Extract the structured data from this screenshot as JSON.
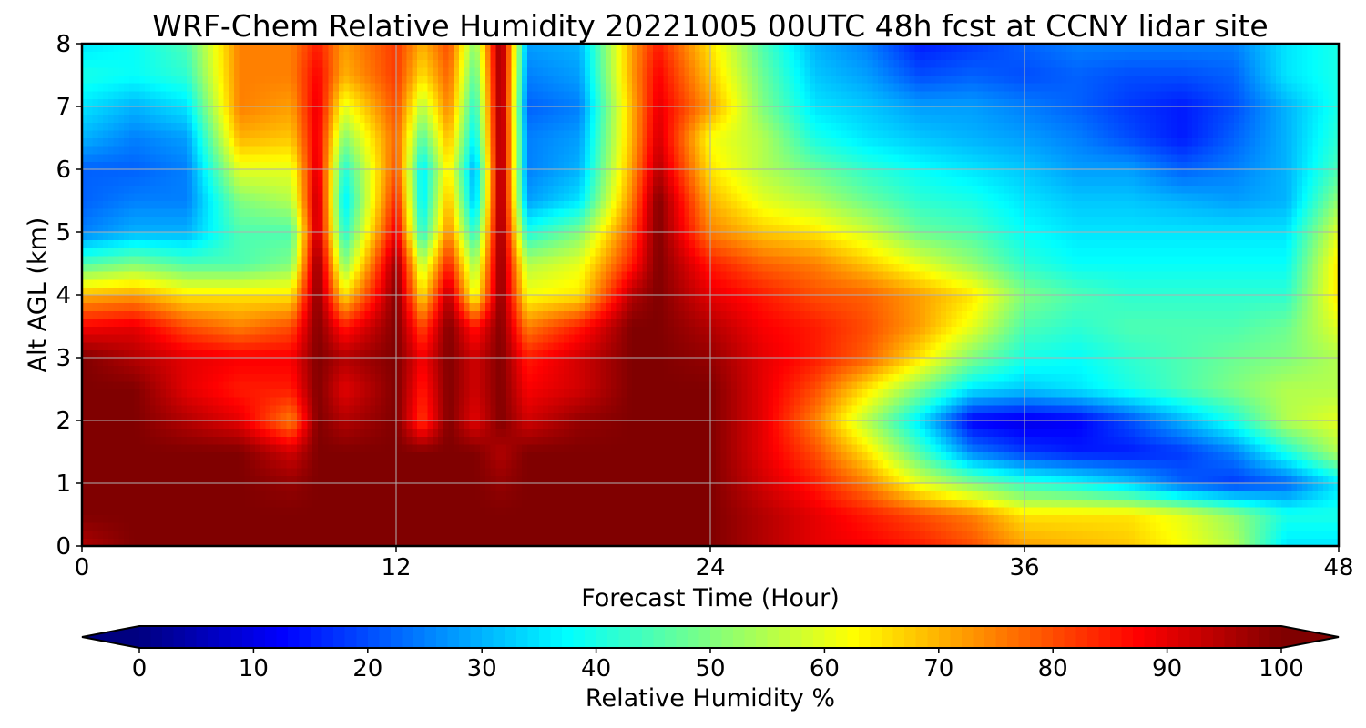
{
  "chart_data": {
    "type": "heatmap",
    "title": "WRF-Chem Relative Humidity 20221005 00UTC 48h fcst at CCNY lidar site",
    "xlabel": "Forecast Time (Hour)",
    "ylabel": "Alt AGL (km)",
    "xlim": [
      0,
      48
    ],
    "ylim": [
      0,
      8
    ],
    "x_ticks": [
      0,
      12,
      24,
      36,
      48
    ],
    "y_ticks": [
      0,
      1,
      2,
      3,
      4,
      5,
      6,
      7,
      8
    ],
    "grid": true,
    "colormap": "jet",
    "colorbar": {
      "label": "Relative Humidity %",
      "range": [
        0,
        100
      ],
      "ticks": [
        0,
        10,
        20,
        30,
        40,
        50,
        60,
        70,
        80,
        90,
        100
      ],
      "extend": "both",
      "orientation": "horizontal",
      "placement": "bottom"
    },
    "x": [
      0,
      2,
      4,
      6,
      8,
      9,
      10,
      12,
      13,
      14,
      15,
      16,
      17,
      19,
      21,
      22,
      24,
      26,
      28,
      30,
      32,
      34,
      36,
      38,
      40,
      42,
      44,
      46,
      48
    ],
    "y": [
      0,
      0.5,
      1,
      1.5,
      2,
      2.5,
      3,
      3.5,
      4,
      4.5,
      5,
      5.5,
      6,
      6.5,
      7,
      7.5,
      8
    ],
    "values": [
      [
        95,
        100,
        100,
        100,
        100,
        100,
        100,
        100,
        100,
        100,
        100,
        100,
        100,
        100,
        100,
        100,
        100,
        95,
        90,
        88,
        85,
        80,
        72,
        70,
        68,
        62,
        55,
        35,
        35
      ],
      [
        100,
        100,
        100,
        100,
        100,
        100,
        100,
        100,
        100,
        100,
        100,
        100,
        100,
        100,
        100,
        100,
        100,
        95,
        90,
        85,
        80,
        75,
        65,
        65,
        65,
        60,
        52,
        40,
        40
      ],
      [
        100,
        100,
        100,
        100,
        98,
        100,
        100,
        100,
        100,
        100,
        100,
        98,
        100,
        100,
        100,
        100,
        100,
        92,
        85,
        75,
        60,
        50,
        42,
        38,
        32,
        22,
        18,
        22,
        35
      ],
      [
        100,
        100,
        100,
        100,
        92,
        100,
        100,
        100,
        100,
        100,
        100,
        95,
        100,
        100,
        100,
        100,
        100,
        90,
        80,
        65,
        45,
        25,
        18,
        15,
        15,
        18,
        25,
        40,
        55
      ],
      [
        100,
        100,
        95,
        90,
        75,
        100,
        95,
        100,
        82,
        100,
        90,
        100,
        92,
        98,
        100,
        100,
        100,
        90,
        75,
        55,
        35,
        12,
        10,
        12,
        20,
        30,
        40,
        55,
        60
      ],
      [
        100,
        100,
        90,
        85,
        85,
        100,
        90,
        100,
        85,
        100,
        92,
        100,
        88,
        92,
        100,
        100,
        100,
        90,
        80,
        65,
        50,
        35,
        32,
        35,
        40,
        45,
        50,
        55,
        55
      ],
      [
        100,
        95,
        90,
        88,
        88,
        100,
        95,
        100,
        88,
        100,
        92,
        100,
        85,
        92,
        100,
        100,
        98,
        90,
        85,
        78,
        65,
        50,
        40,
        38,
        42,
        45,
        48,
        50,
        55
      ],
      [
        88,
        90,
        80,
        75,
        80,
        100,
        85,
        100,
        80,
        100,
        85,
        100,
        75,
        85,
        100,
        100,
        95,
        88,
        85,
        80,
        72,
        60,
        45,
        42,
        45,
        45,
        45,
        48,
        60
      ],
      [
        70,
        72,
        65,
        65,
        65,
        100,
        65,
        100,
        65,
        95,
        60,
        100,
        62,
        65,
        95,
        100,
        90,
        85,
        80,
        78,
        72,
        65,
        50,
        45,
        42,
        42,
        42,
        42,
        65
      ],
      [
        45,
        50,
        45,
        45,
        50,
        100,
        50,
        98,
        55,
        85,
        52,
        100,
        55,
        60,
        85,
        100,
        85,
        78,
        75,
        68,
        60,
        52,
        42,
        38,
        38,
        38,
        38,
        38,
        65
      ],
      [
        25,
        30,
        30,
        45,
        45,
        95,
        40,
        90,
        40,
        75,
        40,
        100,
        40,
        50,
        80,
        100,
        75,
        68,
        65,
        58,
        48,
        45,
        38,
        35,
        35,
        35,
        35,
        35,
        60
      ],
      [
        22,
        25,
        25,
        50,
        55,
        95,
        35,
        85,
        35,
        70,
        30,
        100,
        28,
        35,
        75,
        100,
        70,
        60,
        55,
        48,
        42,
        40,
        35,
        32,
        32,
        30,
        28,
        30,
        52
      ],
      [
        22,
        22,
        25,
        60,
        60,
        92,
        40,
        80,
        35,
        65,
        28,
        100,
        25,
        30,
        72,
        95,
        65,
        55,
        48,
        42,
        38,
        35,
        32,
        28,
        28,
        22,
        25,
        30,
        45
      ],
      [
        30,
        25,
        28,
        70,
        68,
        90,
        50,
        78,
        45,
        70,
        35,
        100,
        25,
        28,
        70,
        92,
        62,
        55,
        40,
        35,
        32,
        30,
        28,
        25,
        20,
        15,
        22,
        30,
        42
      ],
      [
        35,
        30,
        35,
        75,
        72,
        90,
        60,
        80,
        55,
        75,
        40,
        100,
        22,
        25,
        70,
        90,
        72,
        50,
        35,
        32,
        28,
        28,
        25,
        22,
        18,
        15,
        20,
        30,
        40
      ],
      [
        40,
        38,
        42,
        75,
        75,
        88,
        70,
        82,
        65,
        78,
        45,
        100,
        25,
        28,
        72,
        88,
        68,
        48,
        32,
        28,
        20,
        22,
        20,
        22,
        20,
        20,
        22,
        35,
        40
      ],
      [
        35,
        38,
        45,
        75,
        75,
        85,
        72,
        82,
        70,
        80,
        50,
        100,
        28,
        30,
        72,
        85,
        65,
        45,
        30,
        25,
        15,
        18,
        22,
        25,
        25,
        25,
        25,
        35,
        40
      ]
    ]
  }
}
